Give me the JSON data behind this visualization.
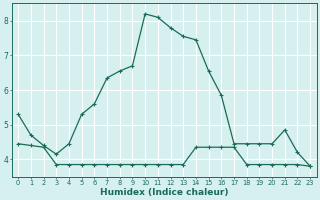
{
  "line1_x": [
    0,
    1,
    2,
    3,
    4,
    5,
    6,
    7,
    8,
    9,
    10,
    11,
    12,
    13,
    14,
    15,
    16,
    17,
    18,
    19,
    20,
    21,
    22,
    23
  ],
  "line1_y": [
    5.3,
    4.7,
    4.4,
    4.15,
    4.45,
    5.3,
    5.6,
    6.35,
    6.55,
    6.7,
    8.2,
    8.1,
    7.8,
    7.55,
    7.45,
    6.55,
    5.85,
    4.45,
    4.45,
    4.45,
    4.45,
    4.85,
    4.2,
    3.8
  ],
  "line2_x": [
    0,
    1,
    2,
    3,
    4,
    5,
    6,
    7,
    8,
    9,
    10,
    11,
    12,
    13,
    14,
    15,
    16,
    17,
    18,
    19,
    20,
    21,
    22,
    23
  ],
  "line2_y": [
    4.45,
    4.4,
    4.35,
    3.85,
    3.85,
    3.85,
    3.85,
    3.85,
    3.85,
    3.85,
    3.85,
    3.85,
    3.85,
    3.85,
    4.35,
    4.35,
    4.35,
    4.35,
    3.85,
    3.85,
    3.85,
    3.85,
    3.85,
    3.8
  ],
  "line_color": "#1a6b5a",
  "bg_color": "#d6f0f0",
  "grid_major_color": "#ffffff",
  "grid_minor_color": "#e8c8c8",
  "xlabel": "Humidex (Indice chaleur)",
  "ylim": [
    3.5,
    8.5
  ],
  "xlim": [
    -0.5,
    23.5
  ],
  "yticks": [
    4,
    5,
    6,
    7,
    8
  ],
  "xticks": [
    0,
    1,
    2,
    3,
    4,
    5,
    6,
    7,
    8,
    9,
    10,
    11,
    12,
    13,
    14,
    15,
    16,
    17,
    18,
    19,
    20,
    21,
    22,
    23
  ],
  "xlabel_fontsize": 6.5,
  "tick_fontsize": 5.5
}
